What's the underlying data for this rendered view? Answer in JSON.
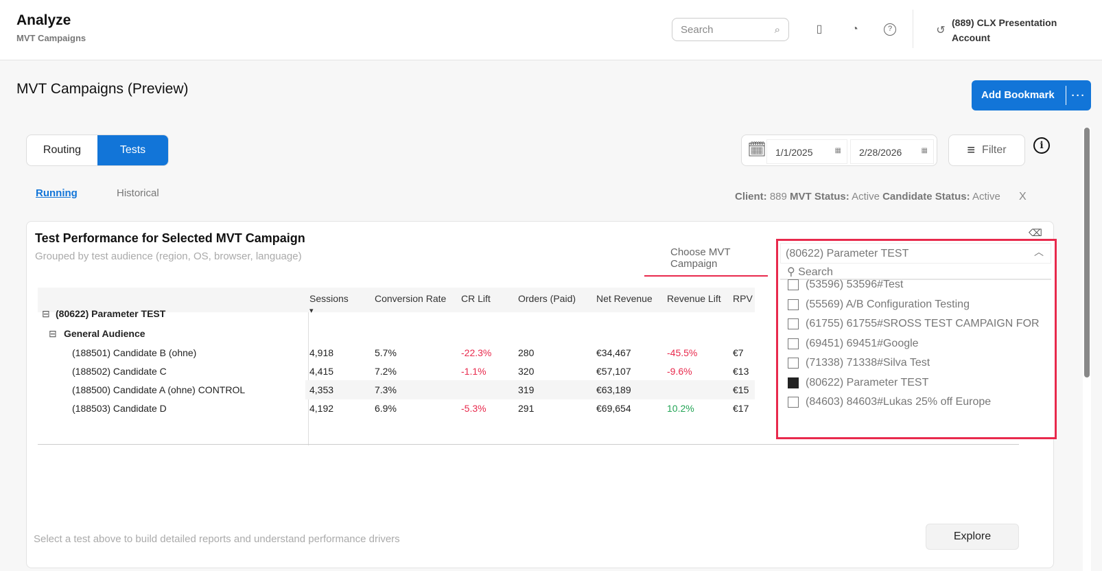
{
  "header": {
    "title": "Analyze",
    "subtitle": "MVT Campaigns",
    "search_placeholder": "Search",
    "account": "(889) CLX Presentation Account"
  },
  "page": {
    "title": "MVT Campaigns (Preview)",
    "add_bookmark": "Add Bookmark",
    "more": "···"
  },
  "view_toggle": [
    {
      "label": "Routing",
      "active": false
    },
    {
      "label": "Tests",
      "active": true
    }
  ],
  "dates": {
    "start": "1/1/2025",
    "end": "2/28/2026"
  },
  "filter_label": "Filter",
  "subtabs": [
    {
      "label": "Running",
      "active": true
    },
    {
      "label": "Historical",
      "active": false
    }
  ],
  "status": {
    "client_label": "Client:",
    "client": "889",
    "mvt_label": "MVT Status:",
    "mvt": "Active",
    "cand_label": "Candidate Status:",
    "cand": "Active",
    "clear": "X"
  },
  "card": {
    "title": "Test Performance for Selected MVT Campaign",
    "subtitle": "Grouped by test audience (region, OS, browser, language)",
    "choose_label": "Choose MVT Campaign",
    "footer": "Select a test above to build detailed reports and understand performance drivers",
    "explore": "Explore"
  },
  "table": {
    "columns": [
      "Sessions",
      "Conversion Rate",
      "CR Lift",
      "Orders (Paid)",
      "Net Revenue",
      "Revenue Lift",
      "RPV"
    ],
    "sort_indicator": "▾",
    "group": "(80622) Parameter TEST",
    "subgroup": "General Audience",
    "rows": [
      {
        "name": "(188501) Candidate B (ohne)",
        "sessions": "4,918",
        "cr": "5.7%",
        "cr_lift": "-22.3%",
        "orders": "280",
        "revenue": "€34,467",
        "rev_lift": "-45.5%",
        "rpv": "€7"
      },
      {
        "name": "(188502) Candidate C",
        "sessions": "4,415",
        "cr": "7.2%",
        "cr_lift": "-1.1%",
        "orders": "320",
        "revenue": "€57,107",
        "rev_lift": "-9.6%",
        "rpv": "€13"
      },
      {
        "name": "(188500) Candidate A (ohne) CONTROL",
        "sessions": "4,353",
        "cr": "7.3%",
        "cr_lift": "",
        "orders": "319",
        "revenue": "€63,189",
        "rev_lift": "",
        "rpv": "€15"
      },
      {
        "name": "(188503) Candidate D",
        "sessions": "4,192",
        "cr": "6.9%",
        "cr_lift": "-5.3%",
        "orders": "291",
        "revenue": "€69,654",
        "rev_lift": "10.2%",
        "rpv": "€17"
      }
    ]
  },
  "dropdown": {
    "selected": "(80622) Parameter TEST",
    "search_placeholder": "Search",
    "options": [
      {
        "label": "(53596) 53596#Test",
        "checked": false
      },
      {
        "label": "(55569) A/B Configuration Testing",
        "checked": false
      },
      {
        "label": "(61755) 61755#SROSS TEST CAMPAIGN FOR …",
        "checked": false
      },
      {
        "label": "(69451) 69451#Google",
        "checked": false
      },
      {
        "label": "(71338) 71338#Silva Test",
        "checked": false
      },
      {
        "label": "(80622) Parameter TEST",
        "checked": true
      },
      {
        "label": "(84603) 84603#Lukas 25% off Europe",
        "checked": false
      }
    ]
  },
  "colors": {
    "accent": "#1275d8",
    "negative": "#e8294c",
    "positive": "#22a455",
    "highlight": "#e8294c"
  }
}
